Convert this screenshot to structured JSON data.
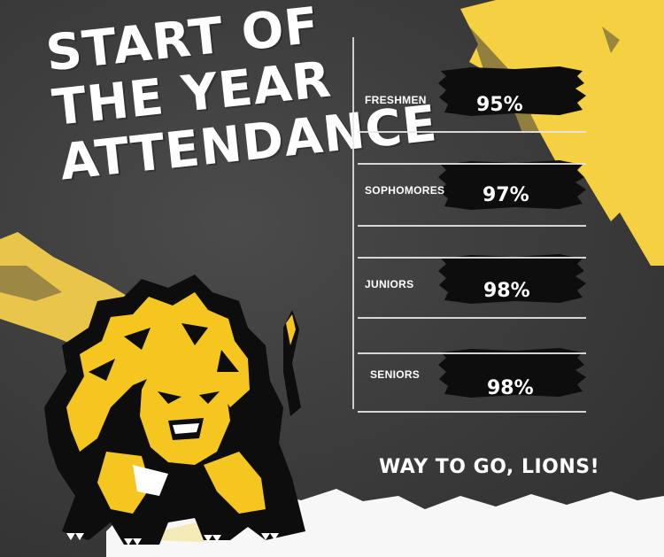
{
  "title": {
    "line1": "START OF",
    "line2": "THE YEAR",
    "line3": "ATTENDANCE"
  },
  "footer": {
    "cheer": "WAY TO GO, LIONS!"
  },
  "colors": {
    "background": "#3d3d3d",
    "accent_yellow": "#f5d040",
    "brush_black": "#0d0d0d",
    "text": "#ffffff"
  },
  "chart_data": {
    "type": "table",
    "title": "START OF THE YEAR ATTENDANCE",
    "categories": [
      "FRESHMEN",
      "SOPHOMORES",
      "JUNIORS",
      "SENIORS"
    ],
    "values": [
      95,
      97,
      98,
      98
    ],
    "value_labels": [
      "95%",
      "97%",
      "98%",
      "98%"
    ],
    "unit": "%"
  },
  "mascot": {
    "icon": "lion-mascot-icon"
  }
}
